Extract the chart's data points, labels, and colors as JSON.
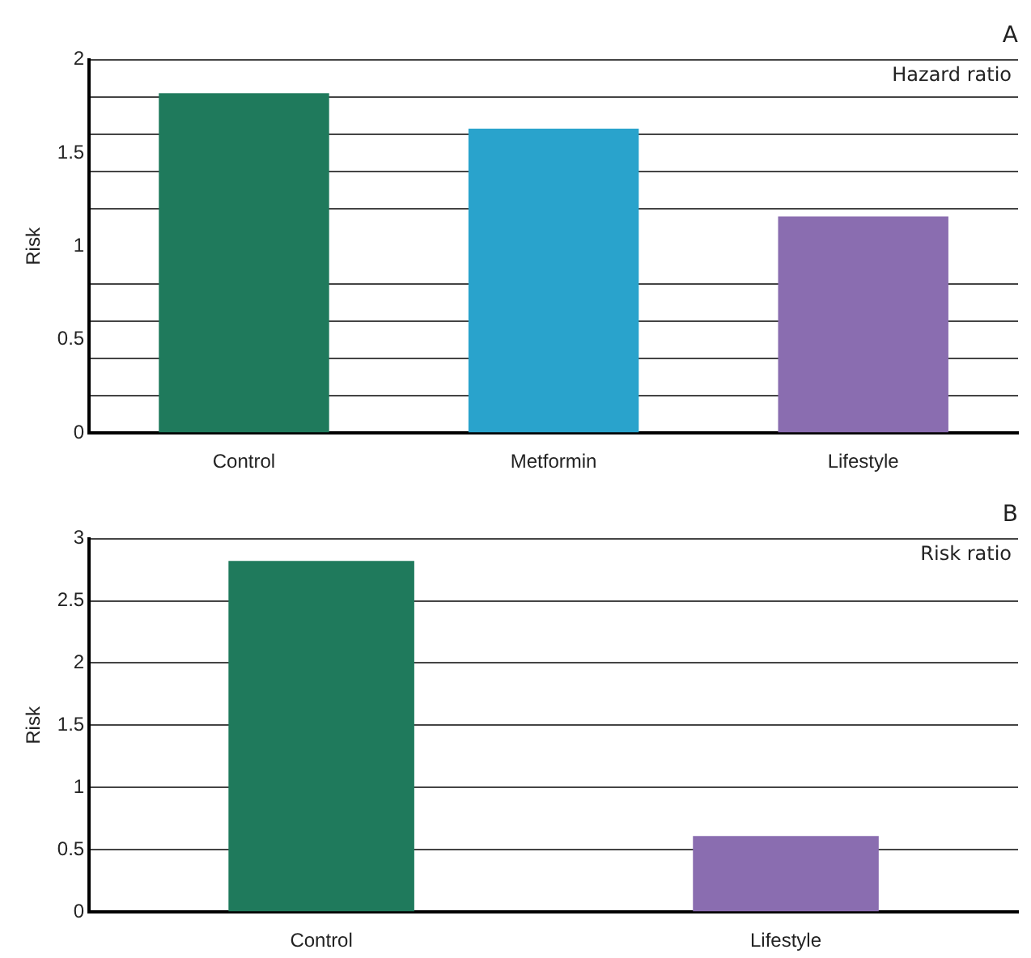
{
  "chart_data": [
    {
      "type": "bar",
      "title": "A",
      "ylabel": "Risk",
      "categories": [
        "Control",
        "Metformin",
        "Lifestyle"
      ],
      "colors": [
        "#1f7a5c",
        "#29a3cc",
        "#8a6db0"
      ],
      "values": [
        1.82,
        1.63,
        1.16
      ],
      "ylim": [
        0,
        2
      ],
      "yticks": [
        0,
        {
          "value": 0.2,
          "label": null
        },
        {
          "value": 0.4,
          "label": null
        },
        0.5,
        {
          "value": 0.6,
          "label": null
        },
        {
          "value": 0.8,
          "label": null
        },
        1,
        {
          "value": 1.2,
          "label": null
        },
        {
          "value": 1.4,
          "label": null
        },
        1.5,
        {
          "value": 1.6,
          "label": null
        },
        {
          "value": 1.8,
          "label": null
        },
        2
      ],
      "grid": "y",
      "annotations": [
        "Hazard ratio"
      ]
    },
    {
      "type": "bar",
      "title": "B",
      "ylabel": "Risk",
      "categories": [
        "Control",
        "Lifestyle"
      ],
      "colors": [
        "#1f7a5c",
        "#8a6db0"
      ],
      "values": [
        2.82,
        0.61
      ],
      "ylim": [
        0,
        3
      ],
      "yticks": [
        0,
        0.5,
        1,
        1.5,
        2,
        2.5,
        3
      ],
      "grid": "y",
      "annotations": [
        "Risk ratio"
      ]
    }
  ]
}
